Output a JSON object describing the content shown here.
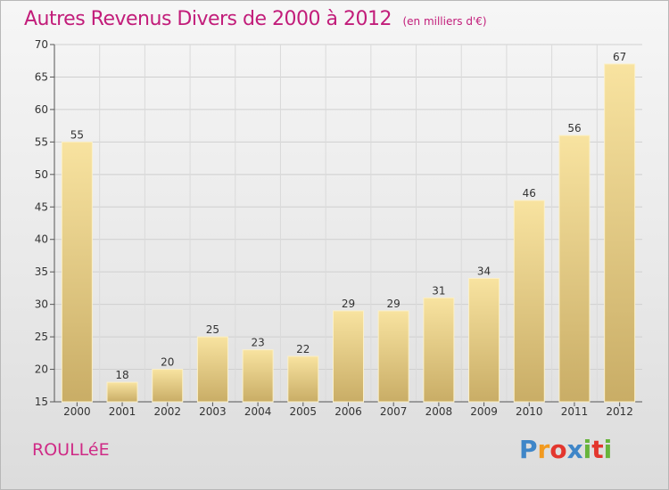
{
  "header": {
    "title": "Autres Revenus Divers de 2000 à 2012",
    "unit": "(en milliers d'€)"
  },
  "footer": {
    "place": "ROULLéE",
    "logo": "Proxiti",
    "logo_colors": [
      "#3f86c8",
      "#f29a1f",
      "#e3362e",
      "#3f86c8",
      "#67b43b",
      "#e3362e",
      "#67b43b"
    ]
  },
  "chart_data": {
    "type": "bar",
    "title": "Autres Revenus Divers de 2000 à 2012",
    "subtitle": "(en milliers d'€)",
    "categories": [
      "2000",
      "2001",
      "2002",
      "2003",
      "2004",
      "2005",
      "2006",
      "2007",
      "2008",
      "2009",
      "2010",
      "2011",
      "2012"
    ],
    "values": [
      55,
      18,
      20,
      25,
      23,
      22,
      29,
      29,
      31,
      34,
      46,
      56,
      67
    ],
    "ylim": [
      15,
      70
    ],
    "yticks": [
      15,
      20,
      25,
      30,
      35,
      40,
      45,
      50,
      55,
      60,
      65,
      70
    ],
    "grid": true,
    "colors": {
      "bar_light": "#f8e3a0",
      "bar_dark": "#c9ad66",
      "grid": "#cfcfcf",
      "text": "#333333"
    }
  }
}
